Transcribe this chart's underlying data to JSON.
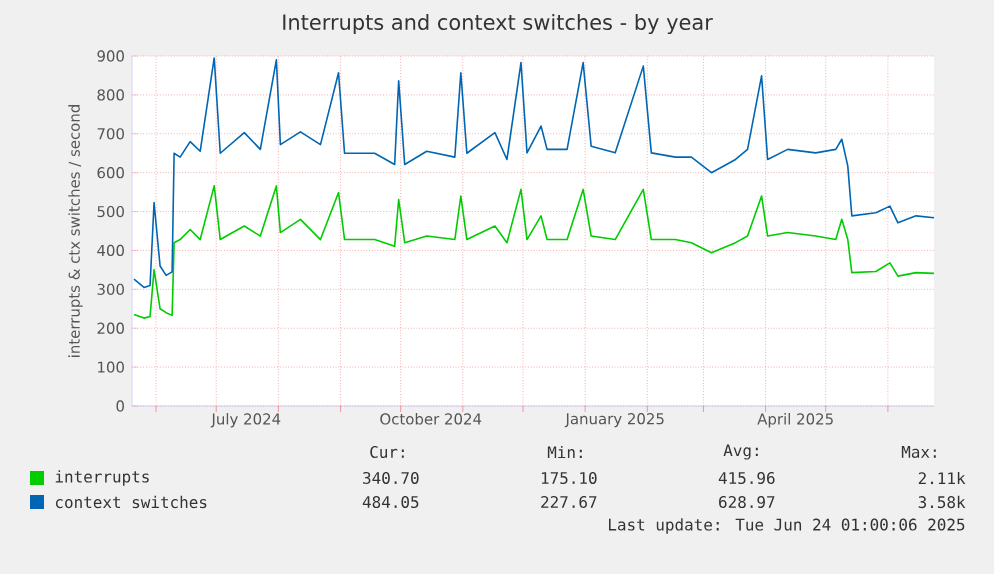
{
  "chart_data": {
    "type": "line",
    "title": "Interrupts and context switches - by year",
    "ylabel": "interrupts & ctx switches / second",
    "x": [
      "2024-05-21",
      "2024-05-26",
      "2024-05-29",
      "2024-05-31",
      "2024-06-03",
      "2024-06-06",
      "2024-06-09",
      "2024-06-10",
      "2024-06-13",
      "2024-06-18",
      "2024-06-23",
      "2024-06-30",
      "2024-07-03",
      "2024-07-15",
      "2024-07-23",
      "2024-07-31",
      "2024-08-02",
      "2024-08-12",
      "2024-08-22",
      "2024-08-31",
      "2024-09-03",
      "2024-09-18",
      "2024-09-28",
      "2024-09-30",
      "2024-10-03",
      "2024-10-14",
      "2024-10-28",
      "2024-10-31",
      "2024-11-03",
      "2024-11-17",
      "2024-11-23",
      "2024-11-30",
      "2024-12-03",
      "2024-12-10",
      "2024-12-13",
      "2024-12-23",
      "2024-12-31",
      "2025-01-04",
      "2025-01-16",
      "2025-01-30",
      "2025-02-03",
      "2025-02-15",
      "2025-02-23",
      "2025-03-05",
      "2025-03-17",
      "2025-03-23",
      "2025-03-30",
      "2025-04-02",
      "2025-04-12",
      "2025-04-26",
      "2025-05-06",
      "2025-05-09",
      "2025-05-12",
      "2025-05-14",
      "2025-05-26",
      "2025-06-02",
      "2025-06-06",
      "2025-06-15",
      "2025-06-24"
    ],
    "series": [
      {
        "name": "interrupts",
        "color": "#00cc00",
        "values": [
          235,
          226,
          230,
          351,
          250,
          240,
          233,
          420,
          428,
          454,
          428,
          566,
          428,
          463,
          437,
          566,
          446,
          480,
          428,
          549,
          428,
          428,
          411,
          531,
          420,
          437,
          428,
          540,
          428,
          463,
          420,
          557,
          428,
          489,
          428,
          428,
          557,
          437,
          428,
          557,
          428,
          428,
          420,
          394,
          420,
          437,
          540,
          437,
          446,
          437,
          428,
          480,
          428,
          343,
          346,
          368,
          334,
          343,
          341
        ]
      },
      {
        "name": "context switches",
        "color": "#0066b3",
        "values": [
          326,
          305,
          310,
          523,
          360,
          336,
          345,
          650,
          640,
          680,
          655,
          895,
          650,
          703,
          660,
          890,
          672,
          705,
          672,
          857,
          650,
          650,
          621,
          836,
          621,
          655,
          640,
          857,
          650,
          703,
          634,
          883,
          651,
          720,
          660,
          660,
          883,
          668,
          651,
          874,
          651,
          640,
          640,
          600,
          634,
          660,
          849,
          634,
          660,
          651,
          660,
          686,
          617,
          489,
          497,
          514,
          471,
          489,
          484
        ]
      }
    ],
    "xlim": [
      "2024-05-20",
      "2025-06-24"
    ],
    "xticks": [
      {
        "value": "2024-06-01",
        "label": null
      },
      {
        "value": "2024-07-01",
        "label": null
      },
      {
        "value": "2024-08-01",
        "label": null
      },
      {
        "value": "2024-09-01",
        "label": null
      },
      {
        "value": "2024-10-01",
        "label": null
      },
      {
        "value": "2024-11-01",
        "label": null
      },
      {
        "value": "2024-12-01",
        "label": null
      },
      {
        "value": "2025-01-01",
        "label": null
      },
      {
        "value": "2025-02-01",
        "label": null
      },
      {
        "value": "2025-03-01",
        "label": null
      },
      {
        "value": "2025-04-01",
        "label": null
      },
      {
        "value": "2025-05-01",
        "label": null
      },
      {
        "value": "2025-06-01",
        "label": null
      },
      {
        "value": "2024-07-16",
        "label": "July 2024"
      },
      {
        "value": "2024-10-16",
        "label": "October 2024"
      },
      {
        "value": "2025-01-16",
        "label": "January 2025"
      },
      {
        "value": "2025-04-16",
        "label": "April 2025"
      }
    ],
    "ylim": [
      0,
      900
    ],
    "yticks": [
      0,
      100,
      200,
      300,
      400,
      500,
      600,
      700,
      800,
      900
    ],
    "grid": true,
    "legend": "bottom",
    "marker": "none",
    "line_style": "solid",
    "annotations": [
      "Cur:",
      "Min:",
      "Avg:",
      "Max:",
      "340.70",
      "175.10",
      "415.96",
      "2.11k",
      "484.05",
      "227.67",
      "628.97",
      "3.58k",
      "Last update: Tue Jun 24 01:00:06 2025"
    ]
  }
}
